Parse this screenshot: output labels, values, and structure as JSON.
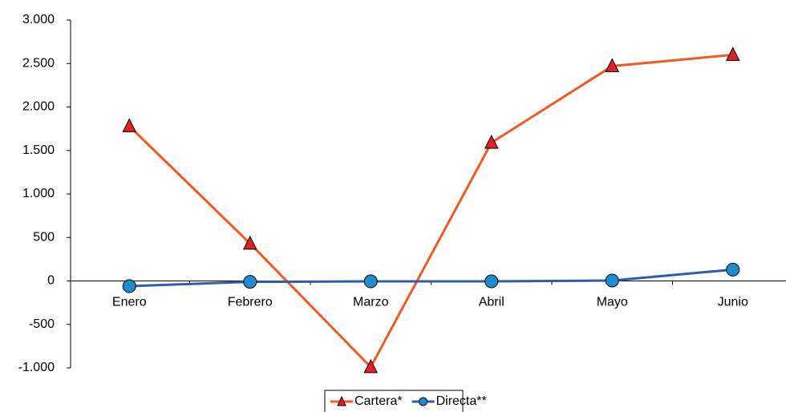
{
  "chart_data": {
    "type": "line",
    "categories": [
      "Enero",
      "Febrero",
      "Marzo",
      "Abril",
      "Mayo",
      "Junio"
    ],
    "series": [
      {
        "name": "Cartera*",
        "color": "#f15a24",
        "marker": "triangle",
        "marker_color": "#e31e24",
        "values": [
          1780,
          430,
          -990,
          1590,
          2470,
          2600
        ]
      },
      {
        "name": "Directa**",
        "color": "#2e5ca8",
        "marker": "circle",
        "marker_color": "#1e8dcf",
        "values": [
          -60,
          -10,
          -5,
          -5,
          5,
          130
        ]
      }
    ],
    "ylim": [
      -1000,
      3000
    ],
    "yticks": [
      {
        "value": -1000,
        "label": "-1.000"
      },
      -500,
      0,
      500,
      {
        "value": 1000,
        "label": "1.000"
      },
      {
        "value": 1500,
        "label": "1.500"
      },
      {
        "value": 2000,
        "label": "2.000"
      },
      {
        "value": 2500,
        "label": "2.500"
      },
      {
        "value": 3000,
        "label": "3.000"
      }
    ],
    "legend": "bottom"
  }
}
